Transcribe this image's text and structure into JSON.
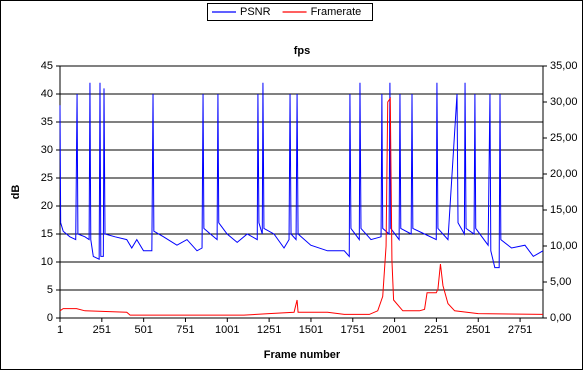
{
  "chart_data": {
    "type": "line",
    "title": "fps",
    "x_label": "Frame number",
    "y_label": "dB",
    "xlim": [
      1,
      2888
    ],
    "xticks": [
      1,
      251,
      501,
      751,
      1001,
      1251,
      1501,
      1751,
      2001,
      2251,
      2501,
      2751
    ],
    "ylim": [
      0,
      45
    ],
    "yticks": [
      0,
      5,
      10,
      15,
      20,
      25,
      30,
      35,
      40,
      45
    ],
    "y2lim": [
      0,
      35
    ],
    "y2ticks": [
      {
        "value": 0,
        "label": "0,00"
      },
      {
        "value": 5,
        "label": "5,00"
      },
      {
        "value": 10,
        "label": "10,00"
      },
      {
        "value": 15,
        "label": "15,00"
      },
      {
        "value": 20,
        "label": "20,00"
      },
      {
        "value": 25,
        "label": "25,00"
      },
      {
        "value": 30,
        "label": "30,00"
      },
      {
        "value": 35,
        "label": "35,00"
      }
    ],
    "grid": true,
    "legend": "top",
    "series": [
      {
        "name": "PSNR",
        "color": "#0000ff",
        "x": [
          1,
          5,
          20,
          60,
          95,
          103,
          108,
          150,
          175,
          180,
          185,
          200,
          235,
          240,
          245,
          260,
          264,
          270,
          330,
          400,
          430,
          460,
          500,
          550,
          557,
          562,
          620,
          700,
          760,
          820,
          850,
          856,
          861,
          900,
          940,
          945,
          950,
          1000,
          1060,
          1120,
          1180,
          1184,
          1190,
          1210,
          1214,
          1220,
          1280,
          1340,
          1370,
          1376,
          1382,
          1412,
          1418,
          1424,
          1500,
          1600,
          1700,
          1730,
          1734,
          1740,
          1790,
          1794,
          1800,
          1860,
          1920,
          1925,
          1930,
          1968,
          1973,
          1978,
          2028,
          2033,
          2038,
          2100,
          2105,
          2110,
          2180,
          2250,
          2254,
          2260,
          2320,
          2374,
          2380,
          2418,
          2422,
          2428,
          2476,
          2481,
          2486,
          2560,
          2571,
          2576,
          2600,
          2626,
          2631,
          2636,
          2700,
          2780,
          2830,
          2888
        ],
        "values": [
          38,
          17,
          15.5,
          14.5,
          14,
          40,
          15,
          14.5,
          14,
          42,
          14,
          11,
          10.5,
          42,
          11,
          11,
          41,
          15,
          14.5,
          14,
          12.5,
          14,
          12,
          12,
          40,
          15.5,
          14.5,
          13,
          14,
          12,
          12.5,
          40,
          16,
          15,
          14,
          40,
          17,
          15,
          13.5,
          15,
          14,
          40,
          17,
          15,
          42,
          16,
          15,
          12.5,
          14,
          40,
          15,
          14,
          40,
          15,
          13,
          12,
          12,
          11,
          40,
          16,
          14,
          42,
          16,
          14,
          14.5,
          40,
          16,
          15,
          42,
          16,
          14,
          40,
          16,
          15,
          40,
          16,
          15,
          14,
          42,
          16,
          14,
          40,
          17,
          15,
          42,
          16,
          15,
          40,
          16,
          13,
          40,
          12,
          9,
          9,
          40,
          14,
          12.5,
          13,
          11,
          12
        ]
      },
      {
        "name": "Framerate",
        "color": "#ff0000",
        "axis": "y2",
        "x": [
          1,
          20,
          100,
          150,
          400,
          420,
          1100,
          1250,
          1400,
          1418,
          1424,
          1600,
          1700,
          1850,
          1900,
          1930,
          1950,
          1960,
          1975,
          1985,
          1995,
          2050,
          2150,
          2180,
          2195,
          2250,
          2260,
          2275,
          2290,
          2320,
          2360,
          2500,
          2888
        ],
        "values": [
          1,
          1.3,
          1.3,
          1,
          0.8,
          0.4,
          0.4,
          0.6,
          0.8,
          2.5,
          0.8,
          0.8,
          0.5,
          0.5,
          1,
          3,
          10,
          30,
          30.5,
          8,
          2.5,
          1,
          1,
          1.2,
          3.5,
          3.5,
          4,
          7.5,
          4.5,
          2,
          1,
          0.6,
          0.5
        ]
      }
    ]
  }
}
